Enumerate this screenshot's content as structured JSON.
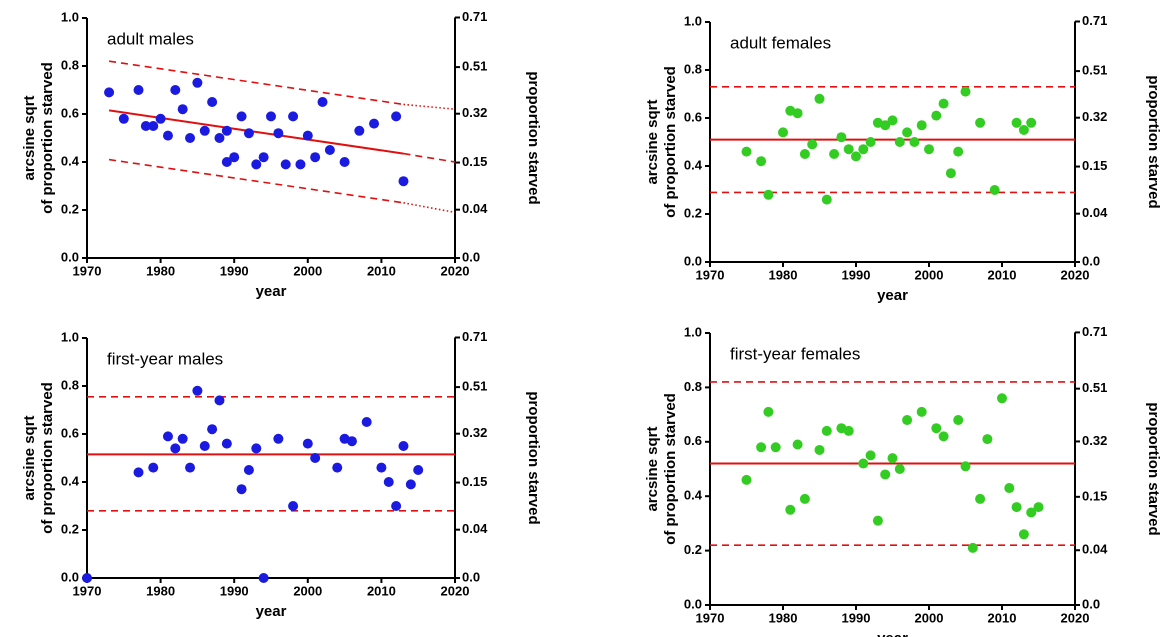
{
  "chart_data": [
    {
      "type": "scatter",
      "title": "adult males",
      "xlabel": "year",
      "ylabel": [
        "arcsine sqrt",
        "of proportion starved"
      ],
      "y2label": "proportion starved",
      "xlim": [
        1970,
        2020
      ],
      "xticks": [
        1970,
        1980,
        1990,
        2000,
        2010,
        2020
      ],
      "ylim": [
        0,
        1
      ],
      "yticks": [
        {
          "value": 0,
          "label": "0.0"
        },
        0.2,
        0.4,
        0.6,
        0.8,
        {
          "value": 1,
          "label": "1.0"
        }
      ],
      "y2lim": [
        0,
        0.71
      ],
      "y2ticks": [
        {
          "value": 0,
          "label": "0.0"
        },
        0.04,
        0.15,
        0.32,
        0.51,
        0.71
      ],
      "y2scale": "arcsine-sqrt",
      "series": [
        {
          "color": "#1a1ae0",
          "x": [
            1973,
            1975,
            1977,
            1978,
            1979,
            1980,
            1981,
            1982,
            1983,
            1984,
            1985,
            1986,
            1987,
            1988,
            1989,
            1989,
            1990,
            1991,
            1992,
            1993,
            1994,
            1995,
            1996,
            1997,
            1998,
            1999,
            2000,
            2001,
            2002,
            2003,
            2005,
            2007,
            2009,
            2012,
            2013
          ],
          "values": [
            0.69,
            0.58,
            0.7,
            0.55,
            0.55,
            0.58,
            0.51,
            0.7,
            0.62,
            0.5,
            0.73,
            0.53,
            0.65,
            0.5,
            0.53,
            0.4,
            0.42,
            0.59,
            0.52,
            0.39,
            0.42,
            0.59,
            0.52,
            0.39,
            0.59,
            0.39,
            0.51,
            0.42,
            0.65,
            0.45,
            0.4,
            0.53,
            0.56,
            0.59,
            0.32
          ]
        }
      ],
      "lines": [
        {
          "color": "#e01010",
          "style": "solid",
          "x": [
            1973,
            2013
          ],
          "values": [
            0.615,
            0.435
          ]
        },
        {
          "color": "#e01010",
          "style": "dashed",
          "x": [
            2013,
            2020
          ],
          "values": [
            0.435,
            0.4
          ]
        },
        {
          "color": "#e01010",
          "style": "dashed",
          "x": [
            1973,
            2013
          ],
          "values": [
            0.82,
            0.64
          ]
        },
        {
          "color": "#e01010",
          "style": "dotted",
          "x": [
            2013,
            2020
          ],
          "values": [
            0.64,
            0.62
          ]
        },
        {
          "color": "#e01010",
          "style": "dashed",
          "x": [
            1973,
            2013
          ],
          "values": [
            0.41,
            0.23
          ]
        },
        {
          "color": "#e01010",
          "style": "dotted",
          "x": [
            2013,
            2020
          ],
          "values": [
            0.23,
            0.19
          ]
        }
      ]
    },
    {
      "type": "scatter",
      "title": "adult females",
      "xlabel": "year",
      "ylabel": [
        "arcsine sqrt",
        "of proportion starved"
      ],
      "y2label": "proportion starved",
      "xlim": [
        1970,
        2020
      ],
      "xticks": [
        1970,
        1980,
        1990,
        2000,
        2010,
        2020
      ],
      "ylim": [
        0,
        1
      ],
      "yticks": [
        {
          "value": 0,
          "label": "0.0"
        },
        0.2,
        0.4,
        0.6,
        0.8,
        {
          "value": 1,
          "label": "1.0"
        }
      ],
      "y2lim": [
        0,
        0.71
      ],
      "y2ticks": [
        {
          "value": 0,
          "label": "0.0"
        },
        0.04,
        0.15,
        0.32,
        0.51,
        0.71
      ],
      "y2scale": "arcsine-sqrt",
      "series": [
        {
          "color": "#33cc22",
          "x": [
            1975,
            1977,
            1978,
            1980,
            1981,
            1982,
            1983,
            1984,
            1985,
            1986,
            1987,
            1988,
            1989,
            1990,
            1991,
            1992,
            1993,
            1994,
            1995,
            1996,
            1997,
            1998,
            1999,
            2000,
            2001,
            2002,
            2003,
            2004,
            2005,
            2007,
            2009,
            2012,
            2013,
            2014
          ],
          "values": [
            0.46,
            0.42,
            0.28,
            0.54,
            0.63,
            0.62,
            0.45,
            0.49,
            0.68,
            0.26,
            0.45,
            0.52,
            0.47,
            0.44,
            0.47,
            0.5,
            0.58,
            0.57,
            0.59,
            0.5,
            0.54,
            0.5,
            0.57,
            0.47,
            0.61,
            0.66,
            0.37,
            0.46,
            0.71,
            0.58,
            0.3,
            0.58,
            0.55,
            0.58
          ]
        }
      ],
      "lines": [
        {
          "color": "#e01010",
          "style": "solid",
          "x": [
            1970,
            2020
          ],
          "values": [
            0.51,
            0.51
          ]
        },
        {
          "color": "#e01010",
          "style": "dashed",
          "x": [
            1970,
            2020
          ],
          "values": [
            0.73,
            0.73
          ]
        },
        {
          "color": "#e01010",
          "style": "dashed",
          "x": [
            1970,
            2020
          ],
          "values": [
            0.29,
            0.29
          ]
        }
      ]
    },
    {
      "type": "scatter",
      "title": "first-year males",
      "xlabel": "year",
      "ylabel": [
        "arcsine sqrt",
        "of proportion starved"
      ],
      "y2label": "proportion starved",
      "xlim": [
        1970,
        2020
      ],
      "xticks": [
        1970,
        1980,
        1990,
        2000,
        2010,
        2020
      ],
      "ylim": [
        0,
        1
      ],
      "yticks": [
        {
          "value": 0,
          "label": "0.0"
        },
        0.2,
        0.4,
        0.6,
        0.8,
        {
          "value": 1,
          "label": "1.0"
        }
      ],
      "y2lim": [
        0,
        0.71
      ],
      "y2ticks": [
        {
          "value": 0,
          "label": "0.0"
        },
        0.04,
        0.15,
        0.32,
        0.51,
        0.71
      ],
      "y2scale": "arcsine-sqrt",
      "series": [
        {
          "color": "#1a1ae0",
          "x": [
            1970,
            1977,
            1979,
            1981,
            1982,
            1983,
            1984,
            1985,
            1986,
            1987,
            1988,
            1989,
            1991,
            1992,
            1993,
            1994,
            1996,
            1998,
            2000,
            2001,
            2004,
            2005,
            2006,
            2008,
            2010,
            2011,
            2012,
            2013,
            2014,
            2015
          ],
          "values": [
            0,
            0.44,
            0.46,
            0.59,
            0.54,
            0.58,
            0.46,
            0.78,
            0.55,
            0.62,
            0.74,
            0.56,
            0.37,
            0.45,
            0.54,
            0,
            0.58,
            0.3,
            0.56,
            0.5,
            0.46,
            0.58,
            0.57,
            0.65,
            0.46,
            0.4,
            0.3,
            0.55,
            0.39,
            0.45
          ]
        }
      ],
      "lines": [
        {
          "color": "#e01010",
          "style": "solid",
          "x": [
            1970,
            2020
          ],
          "values": [
            0.515,
            0.515
          ]
        },
        {
          "color": "#e01010",
          "style": "dashed",
          "x": [
            1970,
            2020
          ],
          "values": [
            0.755,
            0.755
          ]
        },
        {
          "color": "#e01010",
          "style": "dashed",
          "x": [
            1970,
            2020
          ],
          "values": [
            0.28,
            0.28
          ]
        }
      ]
    },
    {
      "type": "scatter",
      "title": "first-year females",
      "xlabel": "year",
      "ylabel": [
        "arcsine sqrt",
        "of proportion starved"
      ],
      "y2label": "proportion starved",
      "xlim": [
        1970,
        2020
      ],
      "xticks": [
        1970,
        1980,
        1990,
        2000,
        2010,
        2020
      ],
      "ylim": [
        0,
        1
      ],
      "yticks": [
        {
          "value": 0,
          "label": "0.0"
        },
        0.2,
        0.4,
        0.6,
        0.8,
        {
          "value": 1,
          "label": "1.0"
        }
      ],
      "y2lim": [
        0,
        0.71
      ],
      "y2ticks": [
        {
          "value": 0,
          "label": "0.0"
        },
        0.04,
        0.15,
        0.32,
        0.51,
        0.71
      ],
      "y2scale": "arcsine-sqrt",
      "series": [
        {
          "color": "#33cc22",
          "x": [
            1975,
            1977,
            1978,
            1979,
            1981,
            1982,
            1983,
            1985,
            1986,
            1988,
            1989,
            1991,
            1992,
            1993,
            1994,
            1995,
            1996,
            1997,
            1999,
            2001,
            2002,
            2004,
            2005,
            2006,
            2007,
            2008,
            2010,
            2011,
            2012,
            2013,
            2014,
            2015
          ],
          "values": [
            0.46,
            0.58,
            0.71,
            0.58,
            0.35,
            0.59,
            0.39,
            0.57,
            0.64,
            0.65,
            0.64,
            0.52,
            0.55,
            0.31,
            0.48,
            0.54,
            0.5,
            0.68,
            0.71,
            0.65,
            0.62,
            0.68,
            0.51,
            0.21,
            0.39,
            0.61,
            0.76,
            0.43,
            0.36,
            0.26,
            0.34,
            0.36
          ]
        }
      ],
      "lines": [
        {
          "color": "#e01010",
          "style": "solid",
          "x": [
            1970,
            2020
          ],
          "values": [
            0.52,
            0.52
          ]
        },
        {
          "color": "#e01010",
          "style": "dashed",
          "x": [
            1970,
            2020
          ],
          "values": [
            0.82,
            0.82
          ]
        },
        {
          "color": "#e01010",
          "style": "dashed",
          "x": [
            1970,
            2020
          ],
          "values": [
            0.22,
            0.22
          ]
        }
      ]
    }
  ]
}
